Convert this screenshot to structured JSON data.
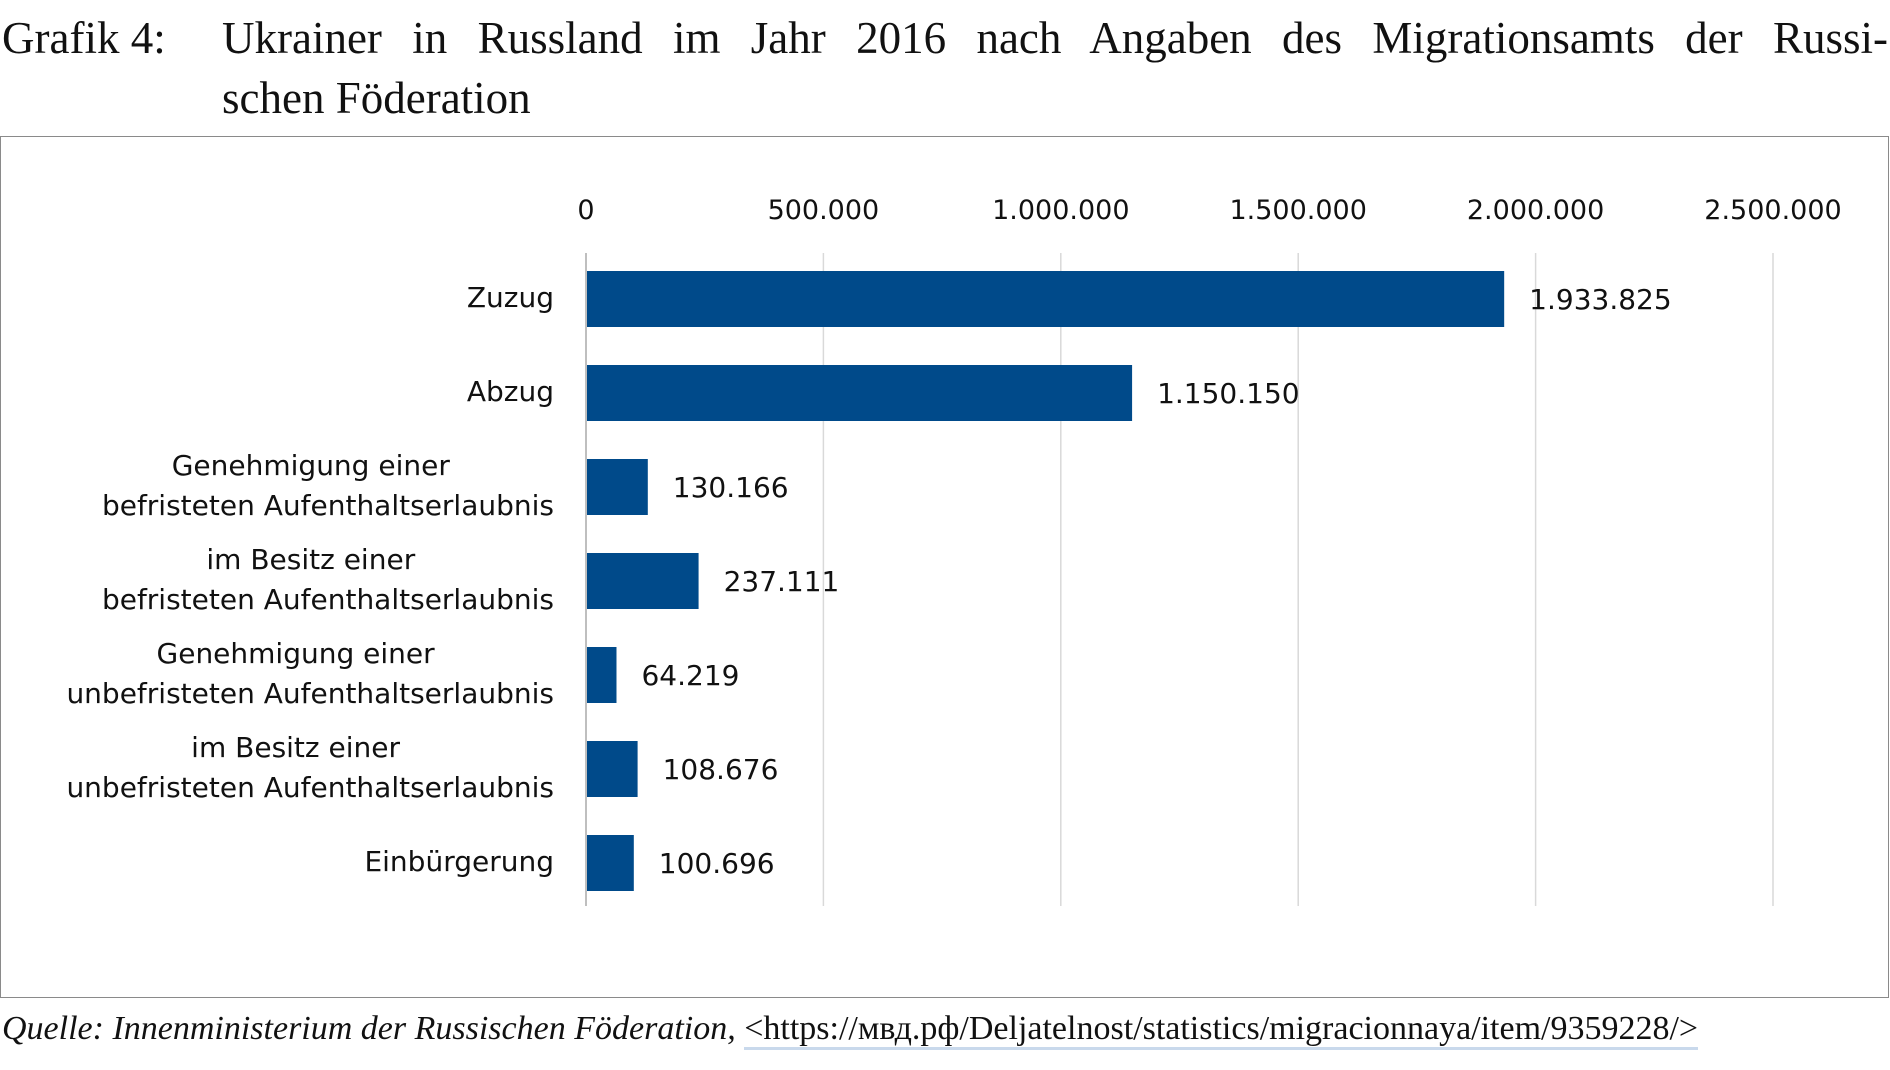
{
  "title": {
    "number": "Grafik 4:",
    "text": "Ukrainer in Russland im Jahr 2016 nach Angaben des Migrationsamts der Russi-schen Föderation",
    "line1": "Ukrainer in Russland im Jahr 2016 nach Angaben des Migrationsamts der Russi-",
    "line2": "schen Föderation"
  },
  "source": {
    "label": "Quelle: Innenministerium der Russischen Föderation,",
    "url": "<https://мвд.рф/Deljatelnost/statistics/migracionnaya/item/9359228/>"
  },
  "colors": {
    "bar": "#004a8a",
    "grid": "#d9d9d9"
  },
  "chart_data": {
    "type": "bar",
    "orientation": "horizontal",
    "categories": [
      [
        "Zuzug"
      ],
      [
        "Abzug"
      ],
      [
        "Genehmigung einer",
        "befristeten Aufenthaltserlaubnis"
      ],
      [
        "im Besitz einer",
        "befristeten Aufenthaltserlaubnis"
      ],
      [
        "Genehmigung einer",
        "unbefristeten Aufenthaltserlaubnis"
      ],
      [
        "im Besitz einer",
        "unbefristeten Aufenthaltserlaubnis"
      ],
      [
        "Einbürgerung"
      ]
    ],
    "values": [
      1933825,
      1150150,
      130166,
      237111,
      64219,
      108676,
      100696
    ],
    "data_labels": [
      "1.933.825",
      "1.150.150",
      "130.166",
      "237.111",
      "64.219",
      "108.676",
      "100.696"
    ],
    "xlim": [
      0,
      2500000
    ],
    "ticks": [
      0,
      500000,
      1000000,
      1500000,
      2000000,
      2500000
    ],
    "tick_labels": [
      "0",
      "500.000",
      "1.000.000",
      "1.500.000",
      "2.000.000",
      "2.500.000"
    ],
    "axis_position": "top",
    "grid": true,
    "legend": "none"
  }
}
